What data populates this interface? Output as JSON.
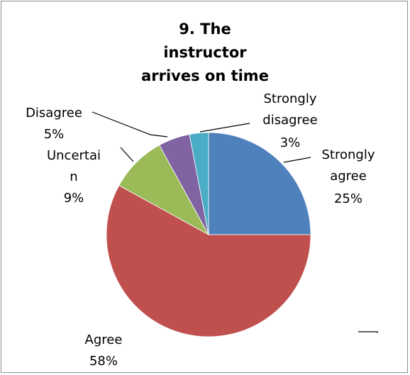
{
  "chart_data": {
    "type": "pie",
    "title_lines": [
      "9. The",
      "instructor",
      "arrives on time"
    ],
    "legend": "none",
    "slices": [
      {
        "name": "Strongly agree",
        "label_lines": [
          "Strongly",
          "agree"
        ],
        "pct_label": "25%",
        "value": 25,
        "color": "#4F81BD"
      },
      {
        "name": "Agree",
        "label_lines": [
          "Agree"
        ],
        "pct_label": "58%",
        "value": 58,
        "color": "#C0504D"
      },
      {
        "name": "Uncertain",
        "label_lines": [
          "Uncertai",
          "n"
        ],
        "pct_label": "9%",
        "value": 9,
        "color": "#9BBB59"
      },
      {
        "name": "Disagree",
        "label_lines": [
          "Disagree"
        ],
        "pct_label": "5%",
        "value": 5,
        "color": "#8064A2"
      },
      {
        "name": "Strongly disagree",
        "label_lines": [
          "Strongly",
          "disagree"
        ],
        "pct_label": "3%",
        "value": 3,
        "color": "#4BACC6"
      }
    ]
  }
}
